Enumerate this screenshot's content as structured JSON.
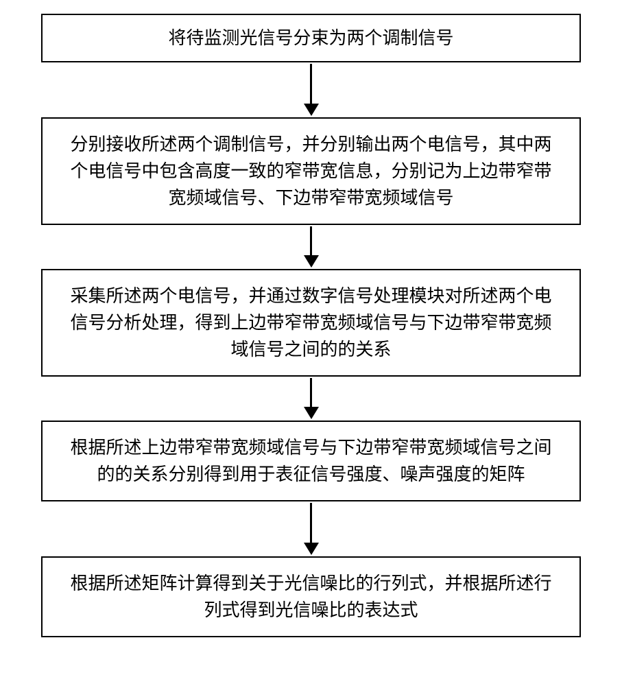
{
  "flowchart": {
    "type": "flowchart",
    "direction": "vertical",
    "background_color": "#ffffff",
    "box_border_color": "#000000",
    "box_border_width": 2,
    "text_color": "#000000",
    "font_family": "SimSun",
    "font_size": 26,
    "arrow_color": "#000000",
    "arrow_line_width": 3,
    "arrow_head_size": 18,
    "nodes": [
      {
        "id": "step1",
        "text": "将待监测光信号分束为两个调制信号",
        "arrow_length": 58
      },
      {
        "id": "step2",
        "text": "分别接收所述两个调制信号，并分别输出两个电信号，其中两个电信号中包含高度一致的窄带宽信息，分别记为上边带窄带宽频域信号、下边带窄带宽频域信号",
        "arrow_length": 42
      },
      {
        "id": "step3",
        "text": "采集所述两个电信号，并通过数字信号处理模块对所述两个电信号分析处理，得到上边带窄带宽频域信号与下边带窄带宽频域信号之间的的关系",
        "arrow_length": 42
      },
      {
        "id": "step4",
        "text": "根据所述上边带窄带宽频域信号与下边带窄带宽频域信号之间的的关系分别得到用于表征信号强度、噪声强度的矩阵",
        "arrow_length": 58
      },
      {
        "id": "step5",
        "text": "根据所述矩阵计算得到关于光信噪比的行列式，并根据所述行列式得到光信噪比的表达式",
        "arrow_length": 0
      }
    ]
  }
}
